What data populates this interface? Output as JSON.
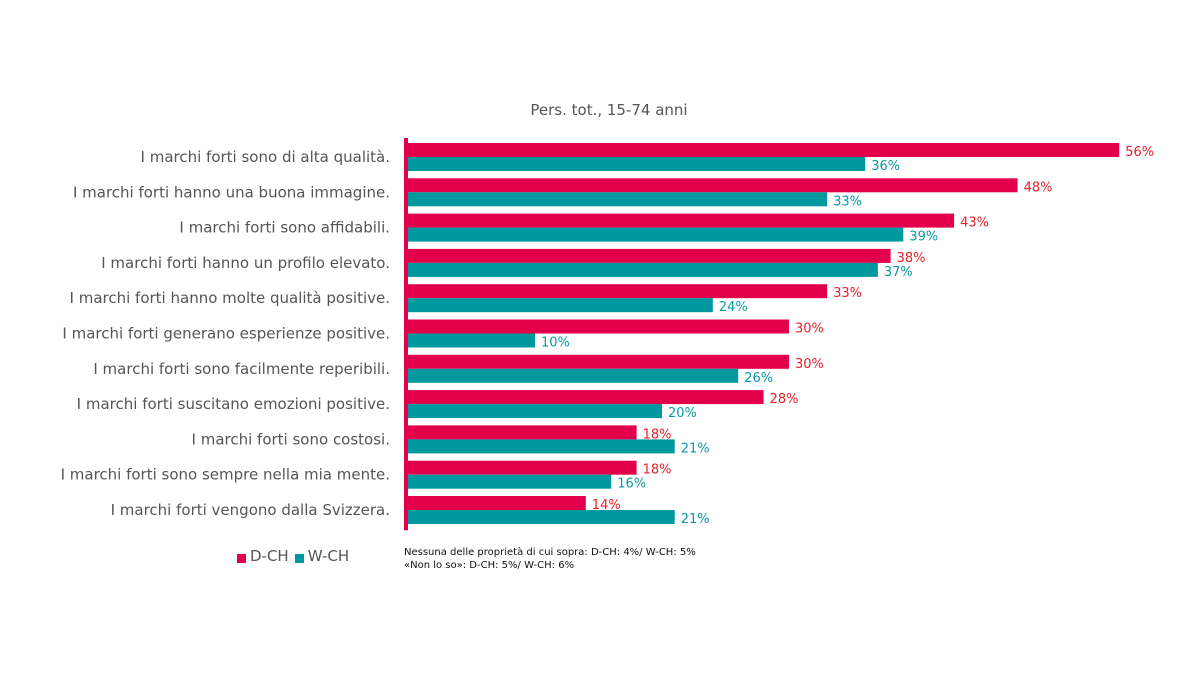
{
  "chart_data": {
    "type": "bar",
    "orientation": "horizontal",
    "title": "Pers. tot., 15-74 anni",
    "categories": [
      "I marchi forti sono di alta qualità.",
      "I marchi forti hanno una buona immagine.",
      "I marchi forti sono affidabili.",
      "I marchi forti hanno un profilo elevato.",
      "I marchi forti hanno molte qualità positive.",
      "I marchi forti generano esperienze positive.",
      "I marchi forti sono facilmente reperibili.",
      "I marchi forti suscitano emozioni positive.",
      "I marchi forti sono costosi.",
      "I marchi forti sono sempre nella mia mente.",
      "I marchi forti vengono dalla Svizzera."
    ],
    "series": [
      {
        "name": "D-CH",
        "color": "#e2004a",
        "label_color": "#e8202a",
        "values": [
          56,
          48,
          43,
          38,
          33,
          30,
          30,
          28,
          18,
          18,
          14
        ]
      },
      {
        "name": "W-CH",
        "color": "#00989f",
        "label_color": "#0a9aa6",
        "values": [
          36,
          33,
          39,
          37,
          24,
          10,
          26,
          20,
          21,
          16,
          21
        ]
      }
    ],
    "value_suffix": "%",
    "xlim": [
      0,
      56
    ],
    "grid": false,
    "legend": "bottom-left"
  },
  "notes": [
    "Nessuna delle proprietà di cui sopra: D-CH: 4%/ W-CH: 5%",
    "«Non lo so»: D-CH: 5%/ W-CH: 6%"
  ]
}
